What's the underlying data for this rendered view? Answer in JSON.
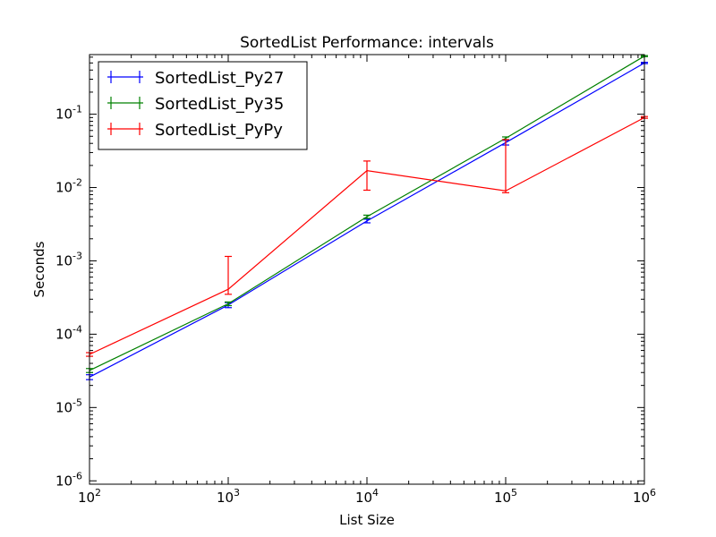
{
  "chart_data": {
    "type": "line",
    "title": "SortedList Performance: intervals",
    "xlabel": "List Size",
    "ylabel": "Seconds",
    "xscale": "log",
    "yscale": "log",
    "xlim": [
      100,
      1000000
    ],
    "ylim": [
      9e-07,
      0.65
    ],
    "x": [
      100,
      1000,
      10000,
      100000,
      1000000
    ],
    "xticks": [
      {
        "base": "10",
        "exp": "2"
      },
      {
        "base": "10",
        "exp": "3"
      },
      {
        "base": "10",
        "exp": "4"
      },
      {
        "base": "10",
        "exp": "5"
      },
      {
        "base": "10",
        "exp": "6"
      }
    ],
    "yticks": [
      {
        "base": "10",
        "exp": "-6",
        "value": 1e-06
      },
      {
        "base": "10",
        "exp": "-5",
        "value": 1e-05
      },
      {
        "base": "10",
        "exp": "-4",
        "value": 0.0001
      },
      {
        "base": "10",
        "exp": "-3",
        "value": 0.001
      },
      {
        "base": "10",
        "exp": "-2",
        "value": 0.01
      },
      {
        "base": "10",
        "exp": "-1",
        "value": 0.1
      }
    ],
    "legend_position": "top-left",
    "grid": false,
    "series": [
      {
        "name": "SortedList_Py27",
        "color": "#0000ff",
        "values": [
          2.6e-05,
          0.00025,
          0.0035,
          0.041,
          0.5
        ],
        "err_low": [
          2.4e-05,
          0.00023,
          0.0033,
          0.038,
          0.49
        ],
        "err_high": [
          2.8e-05,
          0.00027,
          0.0037,
          0.044,
          0.51
        ]
      },
      {
        "name": "SortedList_Py35",
        "color": "#008000",
        "values": [
          3.2e-05,
          0.00026,
          0.004,
          0.047,
          0.62
        ],
        "err_low": [
          3e-05,
          0.000245,
          0.0038,
          0.045,
          0.61
        ],
        "err_high": [
          3.4e-05,
          0.000275,
          0.0042,
          0.049,
          0.63
        ]
      },
      {
        "name": "SortedList_PyPy",
        "color": "#ff0000",
        "values": [
          5.3e-05,
          0.00041,
          0.017,
          0.009,
          0.09
        ],
        "err_low": [
          5e-05,
          0.00035,
          0.0092,
          0.0085,
          0.088
        ],
        "err_high": [
          5.6e-05,
          0.00115,
          0.023,
          0.045,
          0.093
        ]
      }
    ]
  }
}
